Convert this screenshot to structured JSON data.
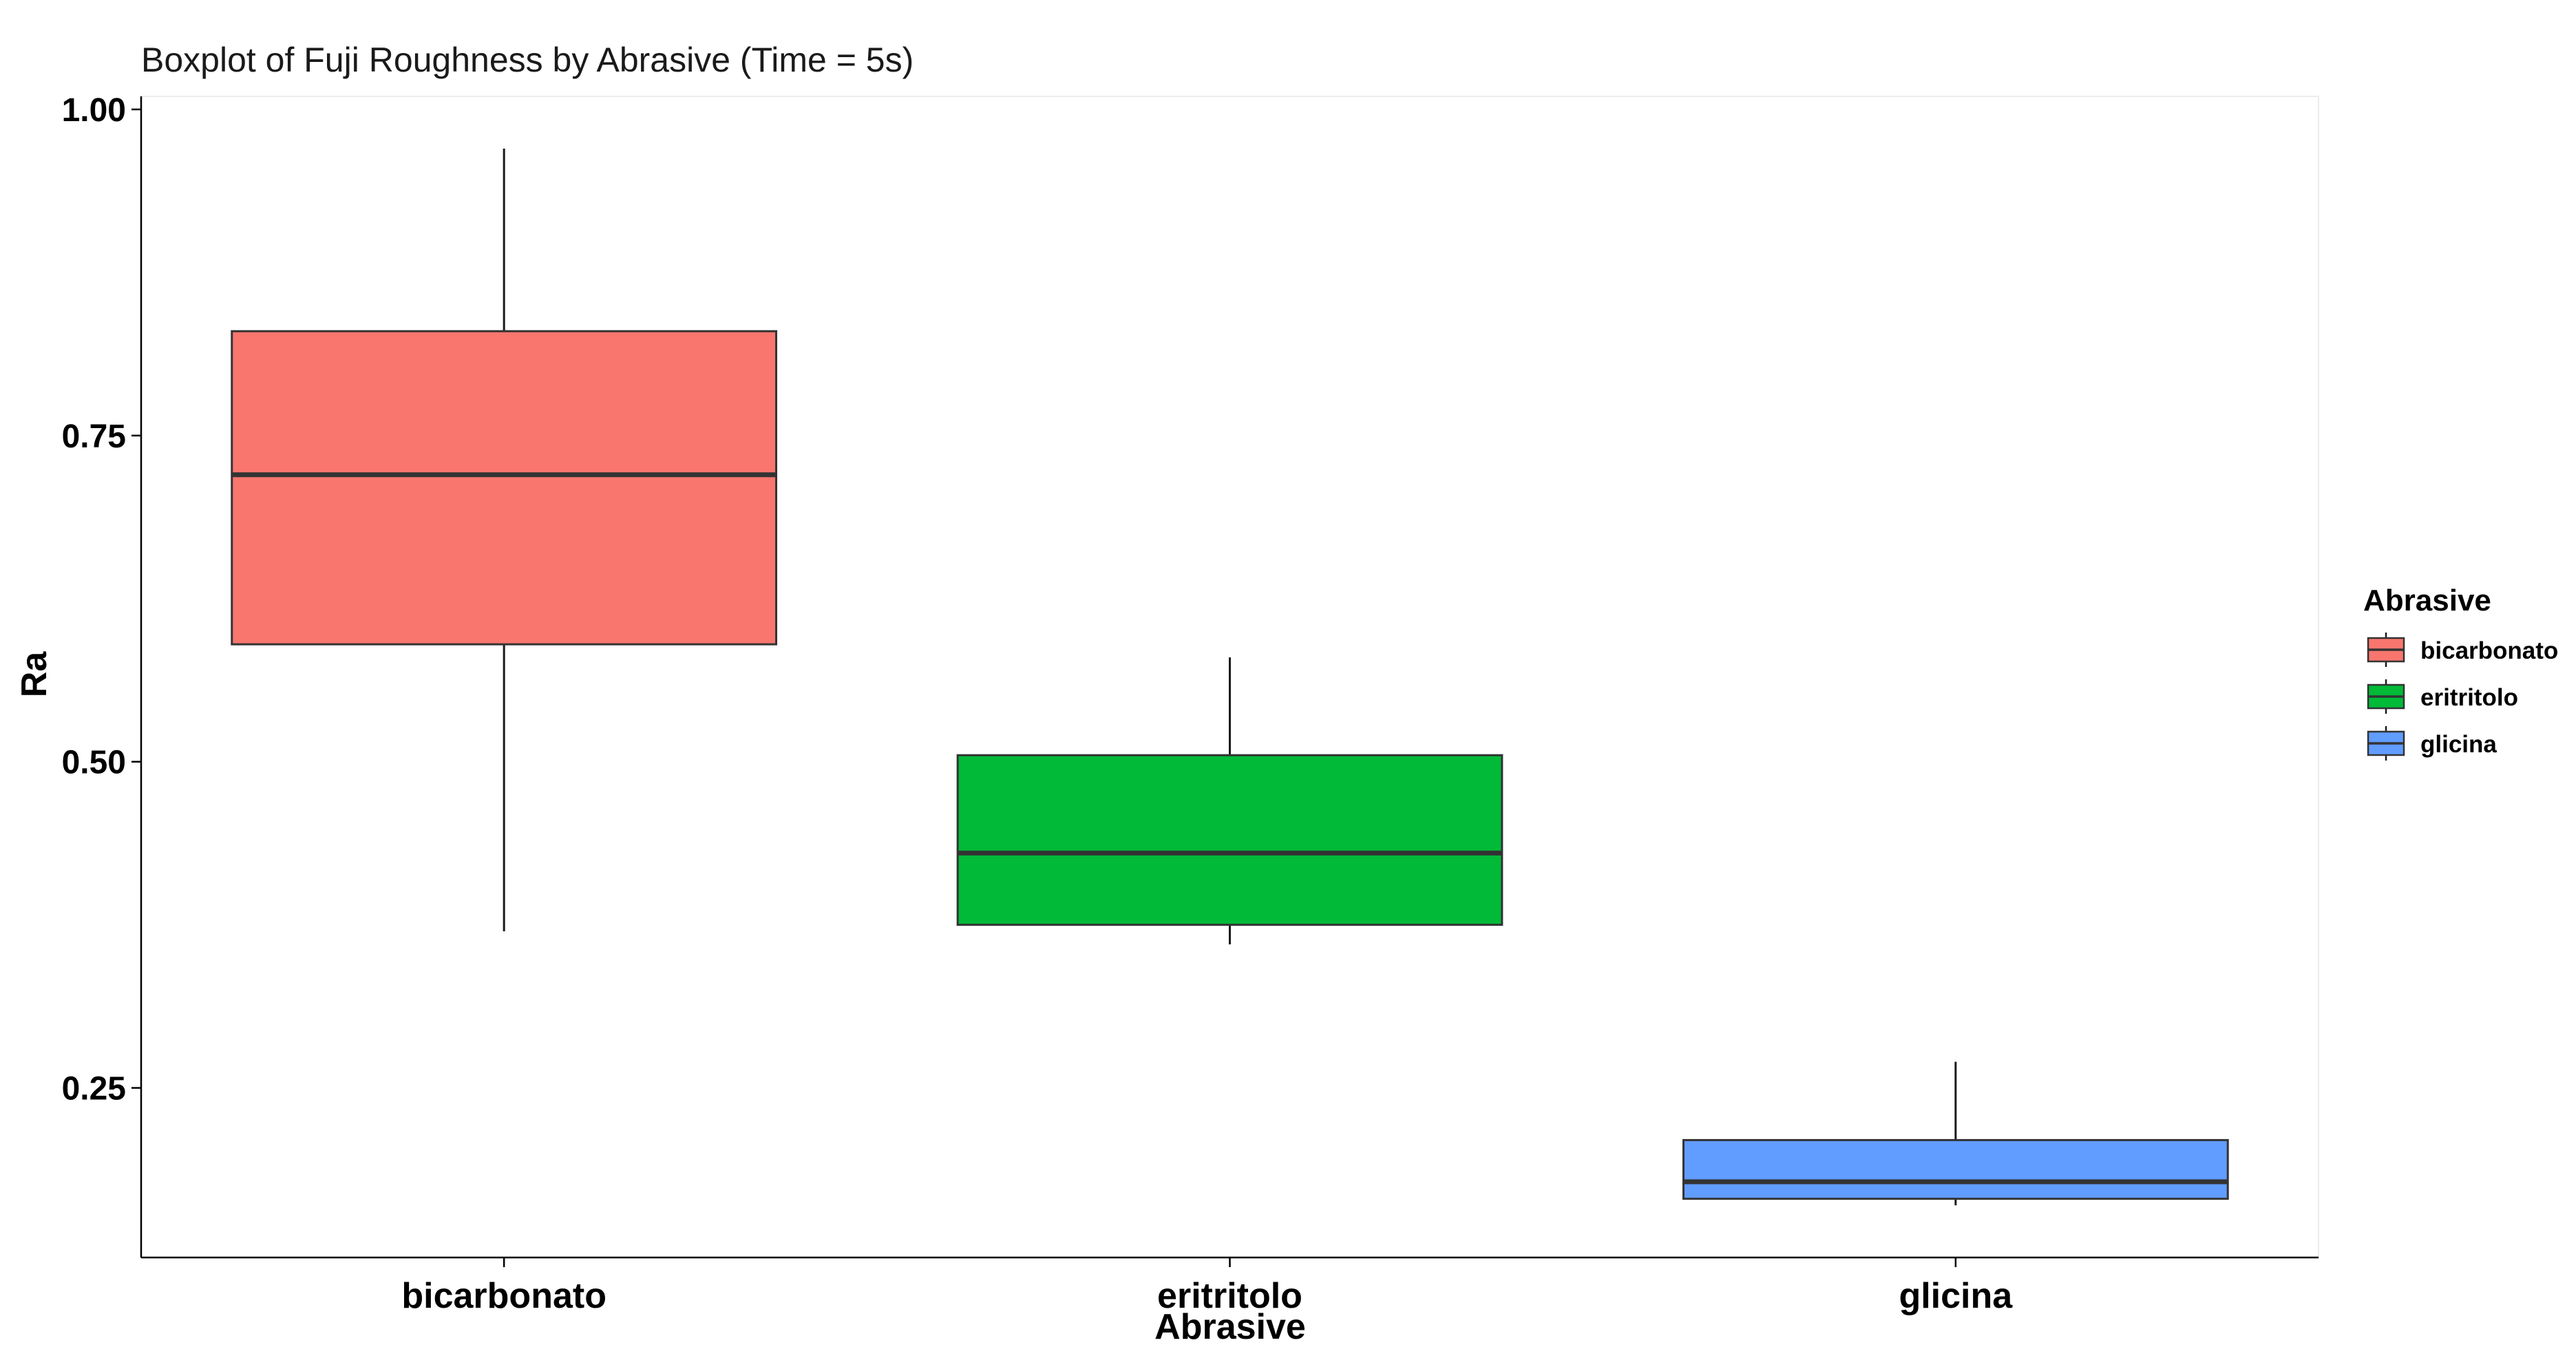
{
  "chart_data": {
    "type": "boxplot",
    "title": "Boxplot of Fuji Roughness by Abrasive (Time = 5s)",
    "xlabel": "Abrasive",
    "ylabel": "Ra",
    "ylim": [
      0.12,
      1.01
    ],
    "yticks": [
      0.25,
      0.5,
      0.75,
      1.0
    ],
    "ytick_labels": [
      "0.25",
      "0.50",
      "0.75",
      "1.00"
    ],
    "grid": false,
    "legend": {
      "title": "Abrasive",
      "position": "right",
      "entries": [
        "bicarbonato",
        "eritritolo",
        "glicina"
      ]
    },
    "categories": [
      "bicarbonato",
      "eritritolo",
      "glicina"
    ],
    "series": [
      {
        "category": "bicarbonato",
        "color": "#F8766D",
        "min": 0.37,
        "q1": 0.59,
        "median": 0.72,
        "q3": 0.83,
        "max": 0.97
      },
      {
        "category": "eritritolo",
        "color": "#00BA38",
        "min": 0.36,
        "q1": 0.375,
        "median": 0.43,
        "q3": 0.505,
        "max": 0.58
      },
      {
        "category": "glicina",
        "color": "#619CFF",
        "min": 0.16,
        "q1": 0.165,
        "median": 0.178,
        "q3": 0.21,
        "max": 0.27
      }
    ]
  }
}
